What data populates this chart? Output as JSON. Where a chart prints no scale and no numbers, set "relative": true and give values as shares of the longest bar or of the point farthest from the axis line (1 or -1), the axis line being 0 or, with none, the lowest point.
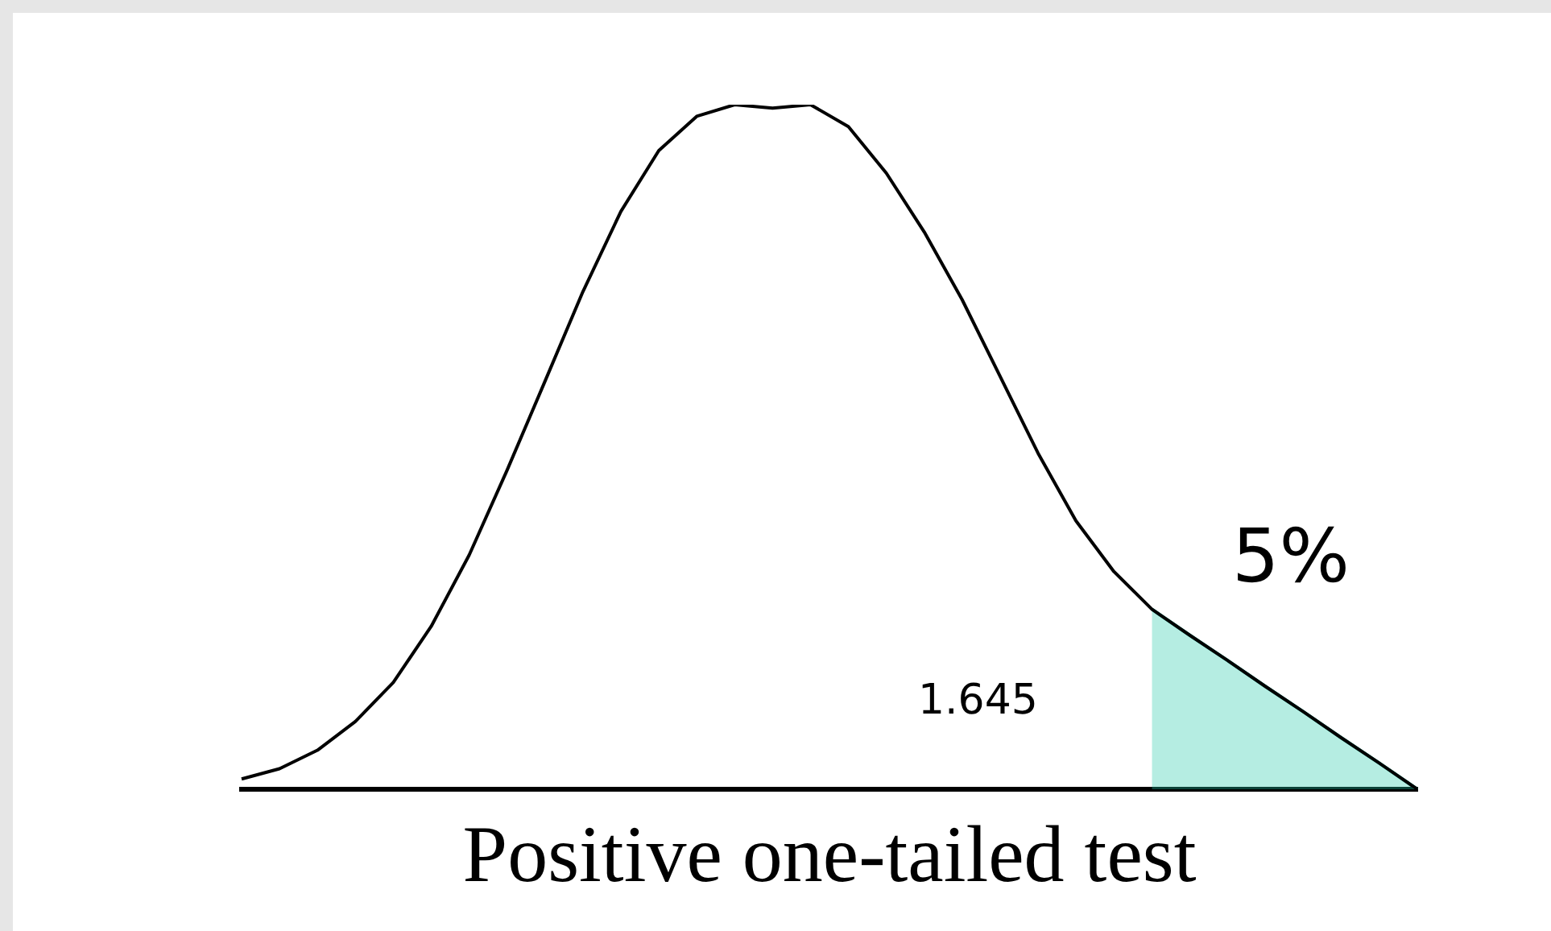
{
  "chart_data": {
    "type": "line",
    "title": "Positive one-tailed test",
    "relative": true,
    "tick_labels": false,
    "categories": [
      null,
      null,
      null,
      null,
      null,
      null,
      null,
      null,
      null,
      null,
      null,
      null,
      null,
      null,
      null,
      null,
      null,
      null,
      null,
      null,
      null,
      null,
      null,
      null,
      null,
      null,
      null,
      null,
      null,
      null,
      null,
      null
    ],
    "series": [
      {
        "color": "#000000",
        "values": [
          0.015,
          0.03,
          0.057,
          0.099,
          0.156,
          0.238,
          0.342,
          0.466,
          0.596,
          0.727,
          0.844,
          0.933,
          0.983,
          1.0,
          0.995,
          1.0,
          0.968,
          0.9,
          0.814,
          0.715,
          0.603,
          0.491,
          0.392,
          0.318,
          0.263,
          0.225,
          0.188,
          0.15,
          0.113,
          0.075,
          0.038,
          0
        ]
      },
      {
        "type": "area",
        "color": "#20c8a8",
        "values": [
          null,
          null,
          null,
          null,
          null,
          null,
          null,
          null,
          null,
          null,
          null,
          null,
          null,
          null,
          null,
          null,
          null,
          null,
          null,
          null,
          null,
          null,
          null,
          null,
          0.263,
          0.225,
          0.188,
          0.15,
          0.113,
          0.075,
          0.038,
          0
        ]
      }
    ],
    "annotations": [
      "5%",
      "1.645"
    ]
  }
}
